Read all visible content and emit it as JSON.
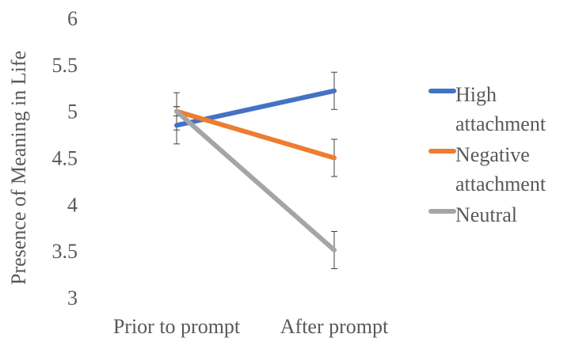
{
  "chart_data": {
    "type": "line",
    "categories": [
      "Prior to prompt",
      "After prompt"
    ],
    "ylabel": "Presence of Meaning in Life",
    "xlabel": "",
    "ylim": [
      3,
      6
    ],
    "yticks": [
      "3",
      "3.5",
      "4",
      "4.5",
      "5",
      "5.5",
      "6"
    ],
    "grid": false,
    "legend_position": "right",
    "series": [
      {
        "name_lines": [
          "High",
          "attachment"
        ],
        "values": [
          4.85,
          5.22
        ],
        "errors": [
          0.2,
          0.2
        ],
        "color": "#4472C4"
      },
      {
        "name_lines": [
          "Negative",
          "attachment"
        ],
        "values": [
          5.0,
          4.5
        ],
        "errors": [
          0.05,
          0.2
        ],
        "color": "#ED7D31"
      },
      {
        "name_lines": [
          "Neutral"
        ],
        "values": [
          5.0,
          3.51
        ],
        "errors": [
          0.2,
          0.2
        ],
        "color": "#A5A5A5"
      }
    ]
  }
}
